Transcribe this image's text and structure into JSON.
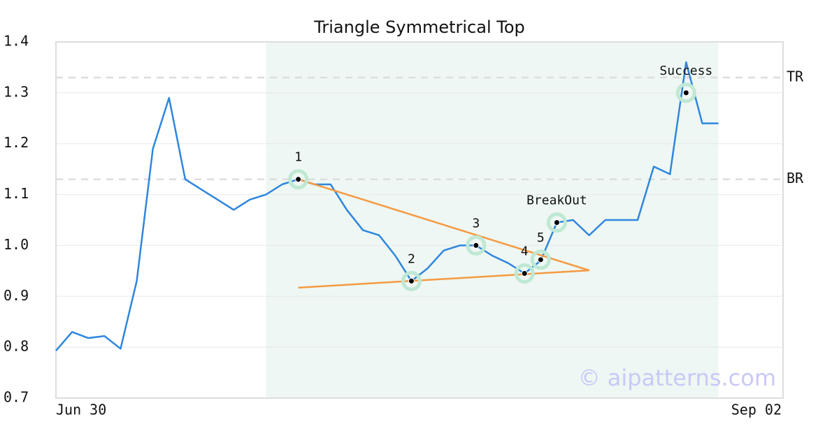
{
  "chart_data": {
    "type": "line",
    "title": "Triangle Symmetrical Top",
    "x": [
      0,
      1,
      2,
      3,
      4,
      5,
      6,
      7,
      8,
      9,
      10,
      11,
      12,
      13,
      14,
      15,
      16,
      17,
      18,
      19,
      20,
      21,
      22,
      23,
      24,
      25,
      26,
      27,
      28,
      29,
      30,
      31,
      32,
      33,
      34,
      35,
      36,
      37,
      38,
      39,
      40,
      41
    ],
    "series": [
      {
        "color": "#2e86de",
        "values": [
          0.793,
          0.83,
          0.818,
          0.822,
          0.797,
          0.93,
          1.19,
          1.29,
          1.13,
          1.11,
          1.09,
          1.07,
          1.09,
          1.1,
          1.12,
          1.13,
          1.12,
          1.12,
          1.07,
          1.03,
          1.02,
          0.98,
          0.93,
          0.955,
          0.99,
          1.0,
          1.0,
          0.98,
          0.965,
          0.945,
          0.97,
          1.045,
          1.05,
          1.02,
          1.05,
          1.05,
          1.05,
          1.155,
          1.14,
          1.36,
          1.24,
          1.24
        ]
      }
    ],
    "xlim": [
      0,
      45
    ],
    "xticks": [
      {
        "value": 0,
        "label": "Jun 30"
      },
      {
        "value": 45,
        "label": "Sep 02"
      }
    ],
    "ylim": [
      0.7,
      1.4
    ],
    "yticks": [
      0.7,
      0.8,
      0.9,
      {
        "value": 1,
        "label": "1.0"
      },
      1.1,
      1.2,
      1.3,
      1.4
    ],
    "grid": true,
    "region": {
      "x": [
        13,
        41
      ],
      "color": "#eef7f3"
    },
    "levels": [
      {
        "label": "TR",
        "value": 1.33
      },
      {
        "label": "BR",
        "value": 1.13
      }
    ],
    "trendlines": [
      {
        "x": [
          15,
          33
        ],
        "y": [
          1.13,
          0.951
        ],
        "color": "#f59a42"
      },
      {
        "x": [
          15,
          33
        ],
        "y": [
          0.917,
          0.951
        ],
        "color": "#f59a42"
      }
    ],
    "points": [
      {
        "label": "1",
        "x": 15,
        "y": 1.13
      },
      {
        "label": "2",
        "x": 22,
        "y": 0.93
      },
      {
        "label": "3",
        "x": 26,
        "y": 1.0
      },
      {
        "label": "4",
        "x": 29,
        "y": 0.945
      },
      {
        "label": "5",
        "x": 30,
        "y": 0.972
      },
      {
        "label": "BreakOut",
        "x": 31,
        "y": 1.045
      },
      {
        "label": "Success",
        "x": 39,
        "y": 1.3
      }
    ],
    "watermark": "© aipatterns.com"
  }
}
